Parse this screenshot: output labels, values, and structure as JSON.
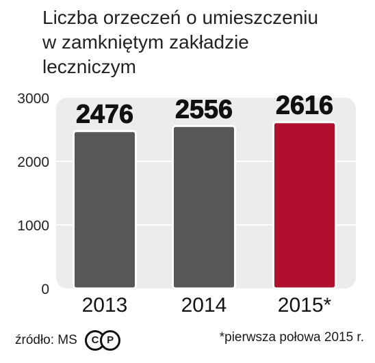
{
  "chart_data": {
    "type": "bar",
    "title_lines": [
      "Liczba orzeczeń o umieszczeniu",
      "w zamkniętym zakładzie",
      "leczniczym"
    ],
    "categories": [
      "2013",
      "2014",
      "2015*"
    ],
    "values": [
      2476,
      2556,
      2616
    ],
    "data_labels": [
      "2476",
      "2556",
      "2616"
    ],
    "y_ticks": [
      "0",
      "1000",
      "2000",
      "3000"
    ],
    "ylim": [
      0,
      3000
    ],
    "grid": true,
    "bar_colors": [
      "#575757",
      "#575757",
      "#b0102e"
    ]
  },
  "footer": {
    "source": "źródło: MS",
    "icon_c": "C",
    "icon_p": "P",
    "note": "*pierwsza połowa 2015 r."
  },
  "colors": {
    "panel": "#ececec",
    "grid": "#ffffff",
    "highlight": "#b0102e",
    "bar": "#575757"
  }
}
